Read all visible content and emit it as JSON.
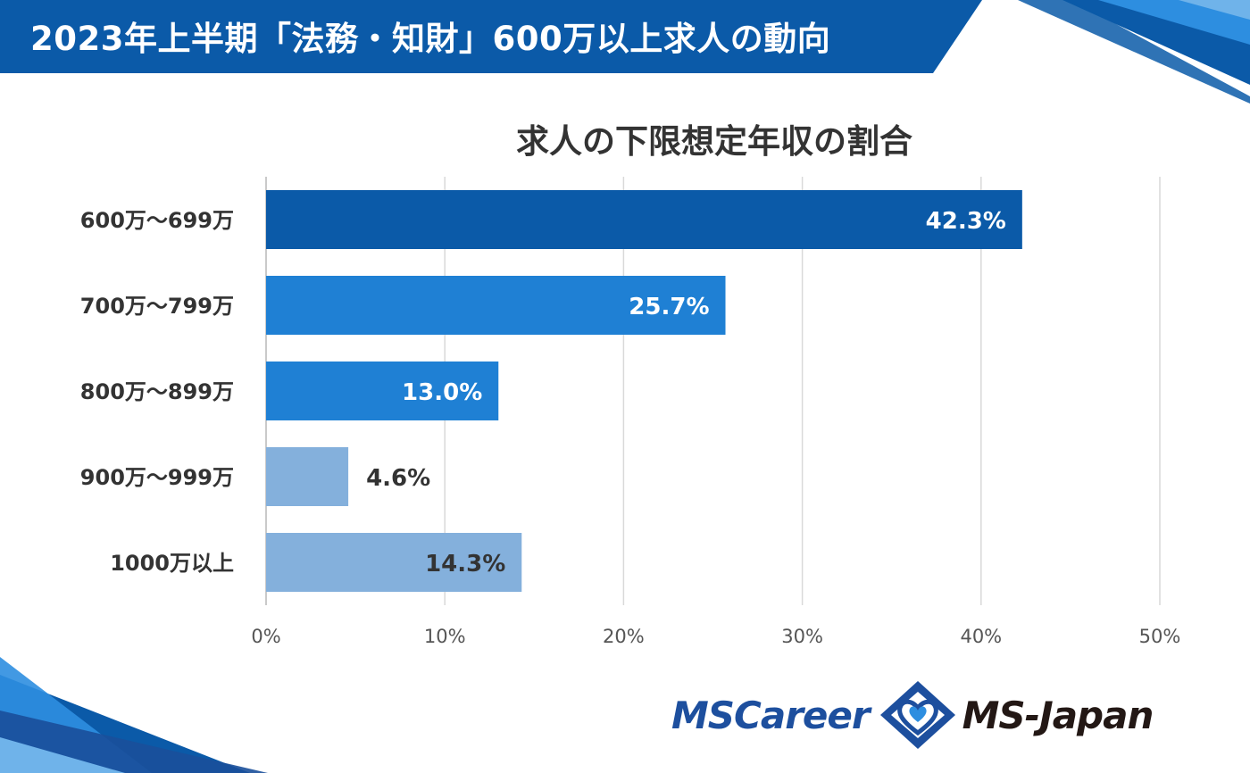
{
  "header": {
    "title": "2023年上半期「法務・知財」600万以上求人の動向"
  },
  "chart_data": {
    "type": "bar",
    "orientation": "horizontal",
    "title": "求人の下限想定年収の割合",
    "categories": [
      "600万～699万",
      "700万～799万",
      "800万～899万",
      "900万～999万",
      "1000万以上"
    ],
    "values": [
      42.3,
      25.7,
      13.0,
      4.6,
      14.3
    ],
    "value_labels": [
      "42.3%",
      "25.7%",
      "13.0%",
      "4.6%",
      "14.3%"
    ],
    "bar_colors": [
      "#0b5aa8",
      "#1f80d4",
      "#1f80d4",
      "#84b0dc",
      "#84b0dc"
    ],
    "label_colors": [
      "#ffffff",
      "#ffffff",
      "#ffffff",
      "#333333",
      "#333333"
    ],
    "label_inside": [
      true,
      true,
      true,
      false,
      true
    ],
    "xlim": [
      0,
      50
    ],
    "xticks": [
      0,
      10,
      20,
      30,
      40,
      50
    ],
    "xtick_labels": [
      "0%",
      "10%",
      "20%",
      "30%",
      "40%",
      "50%"
    ],
    "grid": true,
    "xlabel": "",
    "ylabel": ""
  },
  "logos": {
    "left": "MSCareer",
    "right": "MS-Japan"
  },
  "colors": {
    "banner_blue": "#0b5aa8",
    "accent_light": "#2d8ee0",
    "text_dark": "#333333",
    "grid": "#d9d9d9"
  }
}
